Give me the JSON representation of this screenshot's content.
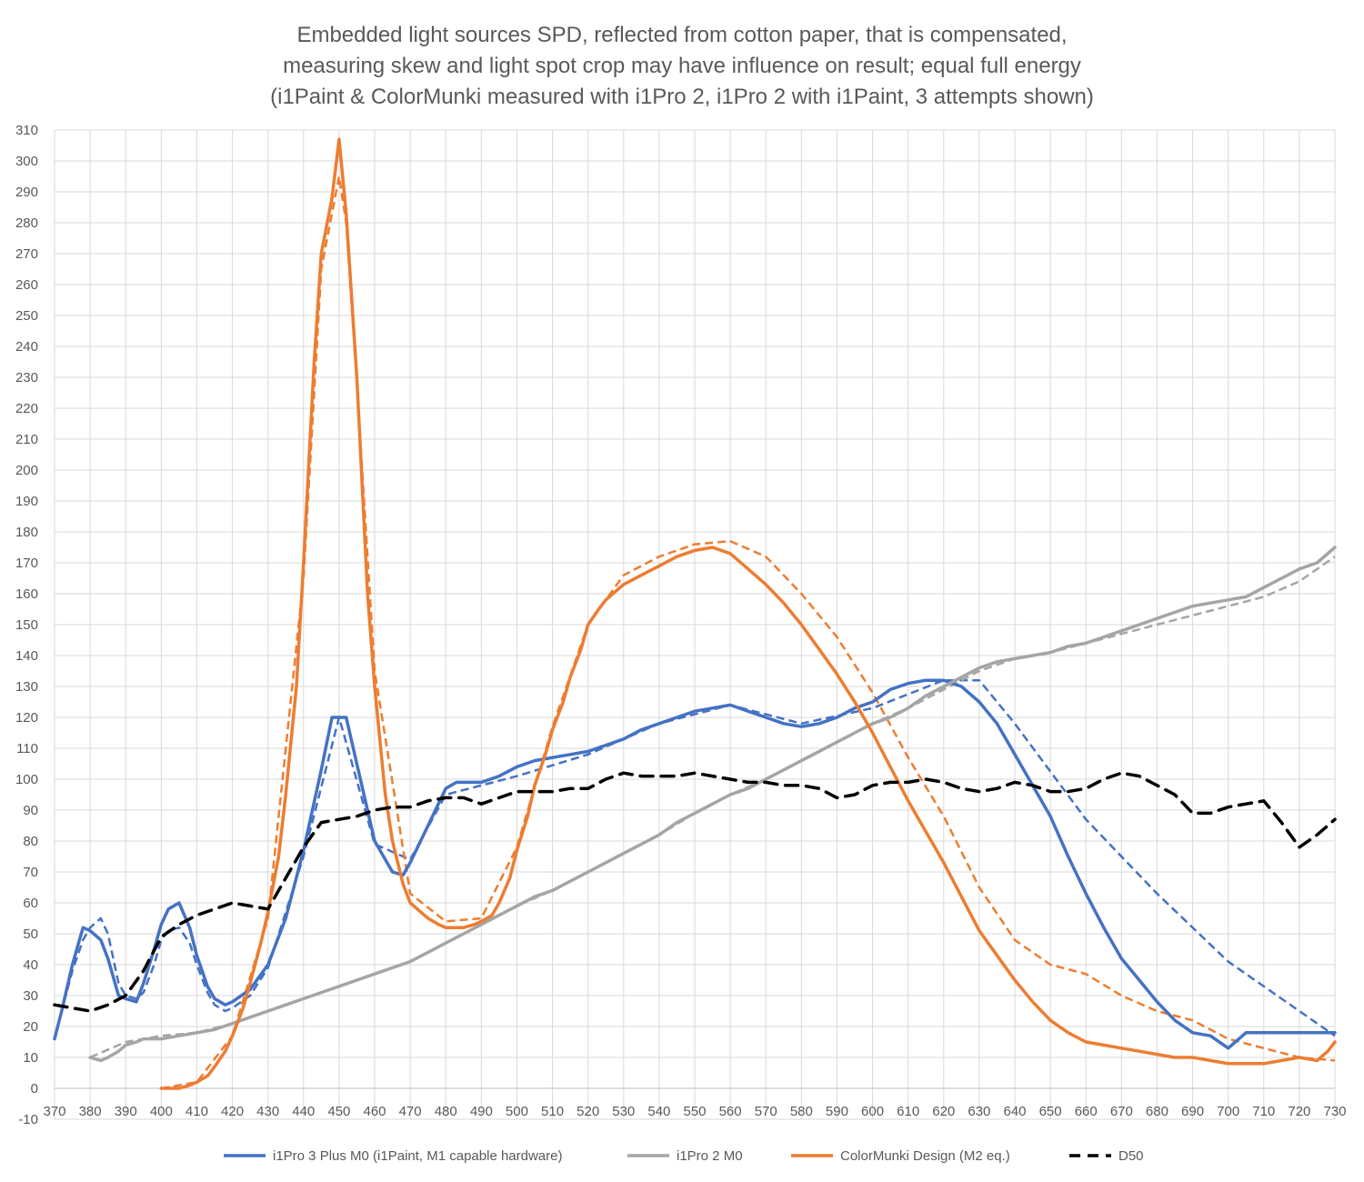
{
  "chart_data": {
    "type": "line",
    "title": [
      "Embedded light sources SPD, reflected from cotton paper, that is compensated,",
      "measuring skew and light spot crop may have influence on result; equal full energy",
      "(i1Paint & ColorMunki measured with i1Pro 2, i1Pro 2 with i1Paint, 3 attempts shown)"
    ],
    "xlabel": "",
    "ylabel": "",
    "xlim": [
      370,
      730
    ],
    "ylim": [
      -10,
      310
    ],
    "x_ticks": [
      370,
      380,
      390,
      400,
      410,
      420,
      430,
      440,
      450,
      460,
      470,
      480,
      490,
      500,
      510,
      520,
      530,
      540,
      550,
      560,
      570,
      580,
      590,
      600,
      610,
      620,
      630,
      640,
      650,
      660,
      670,
      680,
      690,
      700,
      710,
      720,
      730
    ],
    "y_ticks": [
      -10,
      0,
      10,
      20,
      30,
      40,
      50,
      60,
      70,
      80,
      90,
      100,
      110,
      120,
      130,
      140,
      150,
      160,
      170,
      180,
      190,
      200,
      210,
      220,
      230,
      240,
      250,
      260,
      270,
      280,
      290,
      300,
      310
    ],
    "grid": true,
    "legend_position": "bottom",
    "series": [
      {
        "name": "i1Pro 3 Plus M0 (i1Paint, M1 capable hardware)",
        "color": "#4472c4",
        "dash": "solid",
        "x": [
          370,
          372,
          375,
          378,
          380,
          383,
          385,
          388,
          390,
          393,
          395,
          398,
          400,
          402,
          405,
          408,
          410,
          413,
          415,
          418,
          420,
          425,
          430,
          435,
          440,
          445,
          448,
          450,
          452,
          455,
          460,
          465,
          468,
          470,
          475,
          480,
          483,
          485,
          490,
          495,
          500,
          505,
          510,
          515,
          520,
          525,
          530,
          535,
          540,
          545,
          550,
          555,
          560,
          565,
          570,
          575,
          580,
          585,
          590,
          595,
          600,
          605,
          610,
          615,
          620,
          625,
          630,
          635,
          640,
          645,
          650,
          655,
          660,
          665,
          670,
          675,
          680,
          685,
          690,
          695,
          700,
          705,
          710,
          715,
          720,
          725,
          730
        ],
        "values": [
          16,
          25,
          40,
          52,
          51,
          48,
          42,
          30,
          29,
          28,
          34,
          45,
          53,
          58,
          60,
          52,
          43,
          33,
          29,
          27,
          28,
          32,
          40,
          55,
          77,
          103,
          120,
          120,
          120,
          105,
          80,
          70,
          69,
          73,
          85,
          97,
          99,
          99,
          99,
          101,
          104,
          106,
          107,
          108,
          109,
          111,
          113,
          116,
          118,
          120,
          122,
          123,
          124,
          122,
          120,
          118,
          117,
          118,
          120,
          123,
          125,
          129,
          131,
          132,
          132,
          130,
          125,
          118,
          108,
          98,
          88,
          75,
          63,
          52,
          42,
          35,
          28,
          22,
          18,
          17,
          13,
          18,
          18,
          18,
          18,
          18,
          18
        ],
        "x2_note": "solid main curve",
        "x_alt": [
          370,
          372,
          375,
          378,
          380,
          383,
          385,
          388,
          390,
          393,
          395,
          398,
          400,
          402,
          405,
          408,
          410,
          413,
          415,
          418,
          420,
          425,
          430,
          435,
          440,
          445,
          448,
          450,
          452,
          455,
          460,
          465,
          468,
          470,
          475,
          480,
          483,
          485,
          490,
          495,
          500,
          505,
          510,
          515,
          520,
          525,
          530,
          535,
          540,
          545,
          550,
          555,
          560,
          565,
          570,
          575,
          580,
          585,
          590,
          595,
          600,
          605,
          610,
          615,
          620,
          625,
          630,
          635,
          640,
          645,
          650,
          655,
          660,
          665,
          670,
          675,
          680,
          685,
          690,
          695,
          700,
          705,
          710,
          715,
          720,
          725,
          730
        ]
      },
      {
        "name": "i1Pro 2 M0",
        "color": "#a5a5a5",
        "dash": "solid",
        "x": [
          380,
          383,
          385,
          388,
          390,
          393,
          395,
          398,
          400,
          405,
          410,
          415,
          420,
          425,
          430,
          435,
          440,
          445,
          450,
          455,
          460,
          465,
          470,
          475,
          480,
          485,
          490,
          495,
          500,
          505,
          510,
          515,
          520,
          525,
          530,
          535,
          540,
          545,
          550,
          555,
          560,
          565,
          570,
          575,
          580,
          585,
          590,
          595,
          600,
          605,
          610,
          615,
          620,
          625,
          630,
          635,
          640,
          645,
          650,
          655,
          660,
          665,
          670,
          675,
          680,
          685,
          690,
          695,
          700,
          705,
          710,
          715,
          720,
          725,
          730
        ],
        "values": [
          10,
          9,
          10,
          12,
          14,
          15,
          16,
          16,
          16,
          17,
          18,
          19,
          21,
          23,
          25,
          27,
          29,
          31,
          33,
          35,
          37,
          39,
          41,
          44,
          47,
          50,
          53,
          56,
          59,
          62,
          64,
          67,
          70,
          73,
          76,
          79,
          82,
          86,
          89,
          92,
          95,
          97,
          100,
          103,
          106,
          109,
          112,
          115,
          118,
          120,
          123,
          127,
          130,
          133,
          136,
          138,
          139,
          140,
          141,
          143,
          144,
          146,
          148,
          150,
          152,
          154,
          156,
          157,
          158,
          159,
          162,
          165,
          168,
          170,
          175
        ]
      },
      {
        "name": "ColorMunki Design (M2 eq.)",
        "color": "#ed7d31",
        "dash": "solid",
        "x": [
          400,
          402,
          405,
          408,
          410,
          413,
          415,
          418,
          420,
          423,
          425,
          428,
          430,
          433,
          435,
          438,
          440,
          443,
          445,
          448,
          450,
          452,
          455,
          458,
          460,
          463,
          465,
          468,
          470,
          473,
          475,
          478,
          480,
          483,
          485,
          488,
          490,
          493,
          495,
          498,
          500,
          503,
          505,
          508,
          510,
          513,
          515,
          518,
          520,
          523,
          525,
          528,
          530,
          535,
          540,
          545,
          550,
          555,
          560,
          565,
          570,
          575,
          580,
          585,
          590,
          595,
          600,
          605,
          610,
          615,
          620,
          625,
          630,
          635,
          640,
          645,
          650,
          655,
          660,
          665,
          670,
          675,
          680,
          685,
          690,
          695,
          700,
          705,
          710,
          715,
          720,
          725,
          728,
          730
        ],
        "values": [
          0,
          0,
          0,
          1,
          2,
          4,
          7,
          12,
          17,
          26,
          34,
          47,
          57,
          75,
          95,
          130,
          170,
          235,
          270,
          288,
          307,
          283,
          230,
          160,
          130,
          95,
          80,
          66,
          60,
          57,
          55,
          53,
          52,
          52,
          52,
          53,
          54,
          56,
          60,
          68,
          77,
          88,
          98,
          108,
          116,
          125,
          133,
          142,
          150,
          155,
          158,
          161,
          163,
          166,
          169,
          172,
          174,
          175,
          173,
          168,
          163,
          157,
          150,
          142,
          134,
          125,
          115,
          104,
          93,
          83,
          73,
          62,
          51,
          43,
          35,
          28,
          22,
          18,
          15,
          14,
          13,
          12,
          11,
          10,
          10,
          9,
          8,
          8,
          8,
          9,
          10,
          9,
          12,
          15
        ]
      },
      {
        "name": "D50",
        "color": "#000000",
        "dash": "dashed",
        "x": [
          370,
          375,
          380,
          385,
          390,
          395,
          400,
          405,
          410,
          415,
          420,
          425,
          430,
          435,
          440,
          445,
          450,
          455,
          460,
          465,
          470,
          475,
          480,
          485,
          490,
          495,
          500,
          505,
          510,
          515,
          520,
          525,
          530,
          535,
          540,
          545,
          550,
          555,
          560,
          565,
          570,
          575,
          580,
          585,
          590,
          595,
          600,
          605,
          610,
          615,
          620,
          625,
          630,
          635,
          640,
          645,
          650,
          655,
          660,
          665,
          670,
          675,
          680,
          685,
          690,
          695,
          700,
          705,
          710,
          715,
          720,
          725,
          730
        ],
        "values": [
          27,
          26,
          25,
          27,
          30,
          38,
          49,
          53,
          56,
          58,
          60,
          59,
          58,
          68,
          78,
          86,
          87,
          88,
          90,
          91,
          91,
          93,
          94,
          94,
          92,
          94,
          96,
          96,
          96,
          97,
          97,
          100,
          102,
          101,
          101,
          101,
          102,
          101,
          100,
          99,
          99,
          98,
          98,
          97,
          94,
          95,
          98,
          99,
          99,
          100,
          99,
          97,
          96,
          97,
          99,
          98,
          96,
          96,
          97,
          100,
          102,
          101,
          98,
          95,
          89,
          89,
          91,
          92,
          93,
          86,
          78,
          82,
          87
        ]
      }
    ],
    "attempt_series": [
      {
        "series": "i1Pro 3 Plus M0 (i1Paint, M1 capable hardware)",
        "x": [
          370,
          372,
          375,
          378,
          380,
          383,
          385,
          388,
          390,
          393,
          395,
          398,
          400,
          402,
          405,
          408,
          410,
          413,
          415,
          418,
          420,
          425,
          430,
          440,
          450,
          460,
          470,
          480,
          490,
          500,
          520,
          540,
          560,
          580,
          600,
          620,
          630,
          640,
          660,
          680,
          700,
          720,
          730
        ],
        "values": [
          16,
          25,
          38,
          48,
          52,
          55,
          50,
          34,
          30,
          29,
          31,
          40,
          48,
          51,
          52,
          47,
          40,
          31,
          27,
          25,
          26,
          30,
          39,
          75,
          120,
          79,
          74,
          95,
          98,
          101,
          108,
          118,
          124,
          118,
          123,
          132,
          132,
          118,
          87,
          63,
          41,
          25,
          17
        ]
      },
      {
        "series": "ColorMunki Design (M2 eq.)",
        "x": [
          400,
          410,
          420,
          430,
          440,
          445,
          448,
          450,
          452,
          455,
          460,
          470,
          480,
          490,
          500,
          510,
          520,
          530,
          540,
          550,
          560,
          570,
          580,
          590,
          600,
          610,
          620,
          630,
          640,
          650,
          660,
          670,
          680,
          690,
          700,
          710,
          720,
          730
        ],
        "values": [
          0,
          2,
          17,
          55,
          165,
          265,
          283,
          295,
          280,
          228,
          135,
          63,
          54,
          55,
          78,
          117,
          150,
          166,
          172,
          176,
          177,
          172,
          160,
          146,
          128,
          107,
          88,
          65,
          48,
          40,
          37,
          30,
          25,
          22,
          16,
          13,
          10,
          9
        ]
      },
      {
        "series": "i1Pro 2 M0",
        "x": [
          380,
          390,
          400,
          410,
          420,
          430,
          440,
          450,
          460,
          470,
          480,
          490,
          500,
          510,
          520,
          530,
          540,
          550,
          560,
          570,
          580,
          590,
          600,
          610,
          620,
          630,
          640,
          650,
          660,
          670,
          680,
          690,
          700,
          710,
          720,
          730
        ],
        "values": [
          10,
          15,
          17,
          18,
          21,
          25,
          29,
          33,
          37,
          41,
          47,
          53,
          59,
          64,
          70,
          76,
          82,
          89,
          95,
          100,
          106,
          112,
          118,
          123,
          129,
          135,
          139,
          141,
          144,
          147,
          150,
          153,
          156,
          159,
          164,
          172
        ]
      }
    ]
  }
}
